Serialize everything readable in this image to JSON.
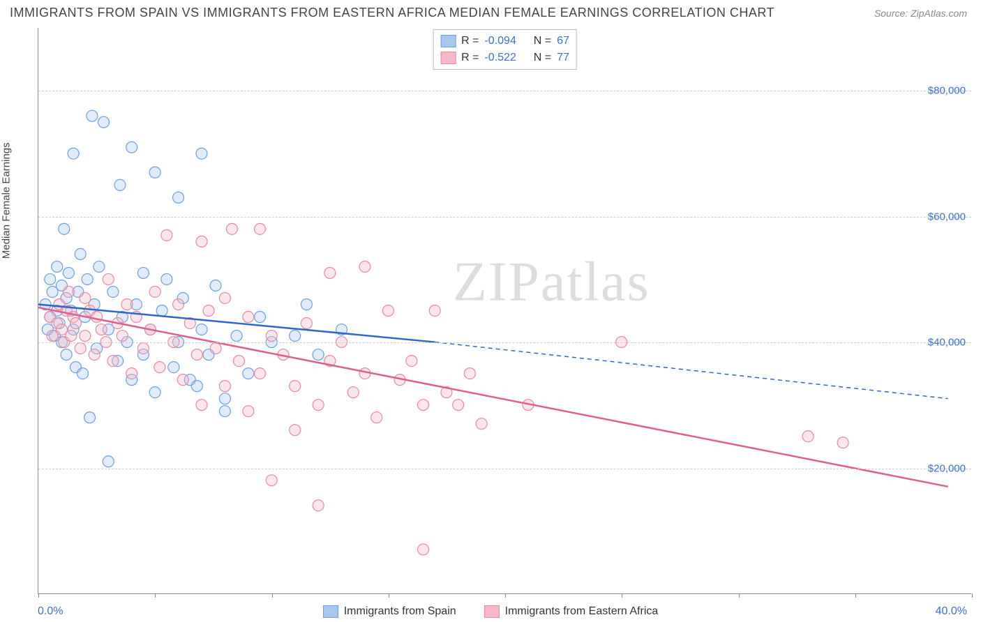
{
  "title": "IMMIGRANTS FROM SPAIN VS IMMIGRANTS FROM EASTERN AFRICA MEDIAN FEMALE EARNINGS CORRELATION CHART",
  "source": "Source: ZipAtlas.com",
  "watermark": "ZIPatlas",
  "chart": {
    "type": "scatter",
    "ylabel": "Median Female Earnings",
    "x_min_label": "0.0%",
    "x_max_label": "40.0%",
    "xlim": [
      0,
      40
    ],
    "ylim": [
      0,
      90000
    ],
    "yticks": [
      20000,
      40000,
      60000,
      80000
    ],
    "ytick_labels": [
      "$20,000",
      "$40,000",
      "$60,000",
      "$80,000"
    ],
    "xticks": [
      0,
      5,
      10,
      15,
      20,
      25,
      30,
      35,
      40
    ],
    "grid_color": "#cccccc",
    "background_color": "#ffffff",
    "marker_radius": 8,
    "marker_fill_opacity": 0.35,
    "marker_stroke_width": 1.2,
    "line_width": 2.5
  },
  "series": [
    {
      "name": "Immigrants from Spain",
      "color_fill": "#a8c6ee",
      "color_stroke": "#6a9fe0",
      "line_color": "#2f66c9",
      "R": "-0.094",
      "N": "67",
      "regression": {
        "x1": 0,
        "y1": 46000,
        "x2_solid": 17,
        "y2_solid": 40000,
        "x2_dash": 39,
        "y2_dash": 31000
      },
      "points": [
        [
          0.3,
          46000
        ],
        [
          0.4,
          42000
        ],
        [
          0.5,
          50000
        ],
        [
          0.5,
          44000
        ],
        [
          0.6,
          48000
        ],
        [
          0.7,
          41000
        ],
        [
          0.8,
          52000
        ],
        [
          0.8,
          45000
        ],
        [
          0.9,
          43000
        ],
        [
          1.0,
          49000
        ],
        [
          1.0,
          40000
        ],
        [
          1.1,
          58000
        ],
        [
          1.2,
          47000
        ],
        [
          1.2,
          38000
        ],
        [
          1.3,
          51000
        ],
        [
          1.4,
          45000
        ],
        [
          1.5,
          70000
        ],
        [
          1.5,
          42000
        ],
        [
          1.6,
          36000
        ],
        [
          1.7,
          48000
        ],
        [
          1.8,
          54000
        ],
        [
          1.9,
          35000
        ],
        [
          2.0,
          44000
        ],
        [
          2.1,
          50000
        ],
        [
          2.2,
          28000
        ],
        [
          2.3,
          76000
        ],
        [
          2.4,
          46000
        ],
        [
          2.5,
          39000
        ],
        [
          2.6,
          52000
        ],
        [
          2.8,
          75000
        ],
        [
          3.0,
          42000
        ],
        [
          3.0,
          21000
        ],
        [
          3.2,
          48000
        ],
        [
          3.4,
          37000
        ],
        [
          3.5,
          65000
        ],
        [
          3.6,
          44000
        ],
        [
          3.8,
          40000
        ],
        [
          4.0,
          71000
        ],
        [
          4.0,
          34000
        ],
        [
          4.2,
          46000
        ],
        [
          4.5,
          51000
        ],
        [
          4.5,
          38000
        ],
        [
          4.8,
          42000
        ],
        [
          5.0,
          67000
        ],
        [
          5.0,
          32000
        ],
        [
          5.3,
          45000
        ],
        [
          5.5,
          50000
        ],
        [
          5.8,
          36000
        ],
        [
          6.0,
          63000
        ],
        [
          6.0,
          40000
        ],
        [
          6.2,
          47000
        ],
        [
          6.5,
          34000
        ],
        [
          6.8,
          33000
        ],
        [
          7.0,
          70000
        ],
        [
          7.0,
          42000
        ],
        [
          7.3,
          38000
        ],
        [
          7.6,
          49000
        ],
        [
          8.0,
          31000
        ],
        [
          8.0,
          29000
        ],
        [
          8.5,
          41000
        ],
        [
          9.0,
          35000
        ],
        [
          9.5,
          44000
        ],
        [
          10.0,
          40000
        ],
        [
          11.0,
          41000
        ],
        [
          11.5,
          46000
        ],
        [
          12.0,
          38000
        ],
        [
          13.0,
          42000
        ]
      ]
    },
    {
      "name": "Immigrants from Eastern Africa",
      "color_fill": "#f4b8c6",
      "color_stroke": "#e988a2",
      "line_color": "#e15f85",
      "R": "-0.522",
      "N": "77",
      "regression": {
        "x1": 0,
        "y1": 45500,
        "x2_solid": 39,
        "y2_solid": 17000,
        "x2_dash": 39,
        "y2_dash": 17000
      },
      "points": [
        [
          0.5,
          44000
        ],
        [
          0.6,
          41000
        ],
        [
          0.8,
          43000
        ],
        [
          0.9,
          46000
        ],
        [
          1.0,
          42000
        ],
        [
          1.1,
          40000
        ],
        [
          1.2,
          45000
        ],
        [
          1.3,
          48000
        ],
        [
          1.4,
          41000
        ],
        [
          1.5,
          44000
        ],
        [
          1.6,
          43000
        ],
        [
          1.8,
          39000
        ],
        [
          2.0,
          47000
        ],
        [
          2.0,
          41000
        ],
        [
          2.2,
          45000
        ],
        [
          2.4,
          38000
        ],
        [
          2.5,
          44000
        ],
        [
          2.7,
          42000
        ],
        [
          2.9,
          40000
        ],
        [
          3.0,
          50000
        ],
        [
          3.2,
          37000
        ],
        [
          3.4,
          43000
        ],
        [
          3.6,
          41000
        ],
        [
          3.8,
          46000
        ],
        [
          4.0,
          35000
        ],
        [
          4.2,
          44000
        ],
        [
          4.5,
          39000
        ],
        [
          4.8,
          42000
        ],
        [
          5.0,
          48000
        ],
        [
          5.2,
          36000
        ],
        [
          5.5,
          57000
        ],
        [
          5.8,
          40000
        ],
        [
          6.0,
          46000
        ],
        [
          6.2,
          34000
        ],
        [
          6.5,
          43000
        ],
        [
          6.8,
          38000
        ],
        [
          7.0,
          56000
        ],
        [
          7.0,
          30000
        ],
        [
          7.3,
          45000
        ],
        [
          7.6,
          39000
        ],
        [
          8.0,
          47000
        ],
        [
          8.0,
          33000
        ],
        [
          8.3,
          58000
        ],
        [
          8.6,
          37000
        ],
        [
          9.0,
          44000
        ],
        [
          9.0,
          29000
        ],
        [
          9.5,
          58000
        ],
        [
          9.5,
          35000
        ],
        [
          10.0,
          41000
        ],
        [
          10.0,
          18000
        ],
        [
          10.5,
          38000
        ],
        [
          11.0,
          33000
        ],
        [
          11.0,
          26000
        ],
        [
          11.5,
          43000
        ],
        [
          12.0,
          30000
        ],
        [
          12.0,
          14000
        ],
        [
          12.5,
          51000
        ],
        [
          12.5,
          37000
        ],
        [
          13.0,
          40000
        ],
        [
          13.5,
          32000
        ],
        [
          14.0,
          52000
        ],
        [
          14.0,
          35000
        ],
        [
          14.5,
          28000
        ],
        [
          15.0,
          45000
        ],
        [
          15.5,
          34000
        ],
        [
          16.0,
          37000
        ],
        [
          16.5,
          30000
        ],
        [
          17.0,
          45000
        ],
        [
          17.5,
          32000
        ],
        [
          18.0,
          30000
        ],
        [
          18.5,
          35000
        ],
        [
          19.0,
          27000
        ],
        [
          16.5,
          7000
        ],
        [
          25.0,
          40000
        ],
        [
          33.0,
          25000
        ],
        [
          34.5,
          24000
        ],
        [
          21.0,
          30000
        ]
      ]
    }
  ],
  "bottom_legend": [
    {
      "label": "Immigrants from Spain",
      "fill": "#a8c6ee",
      "stroke": "#6a9fe0"
    },
    {
      "label": "Immigrants from Eastern Africa",
      "fill": "#f4b8c6",
      "stroke": "#e988a2"
    }
  ]
}
